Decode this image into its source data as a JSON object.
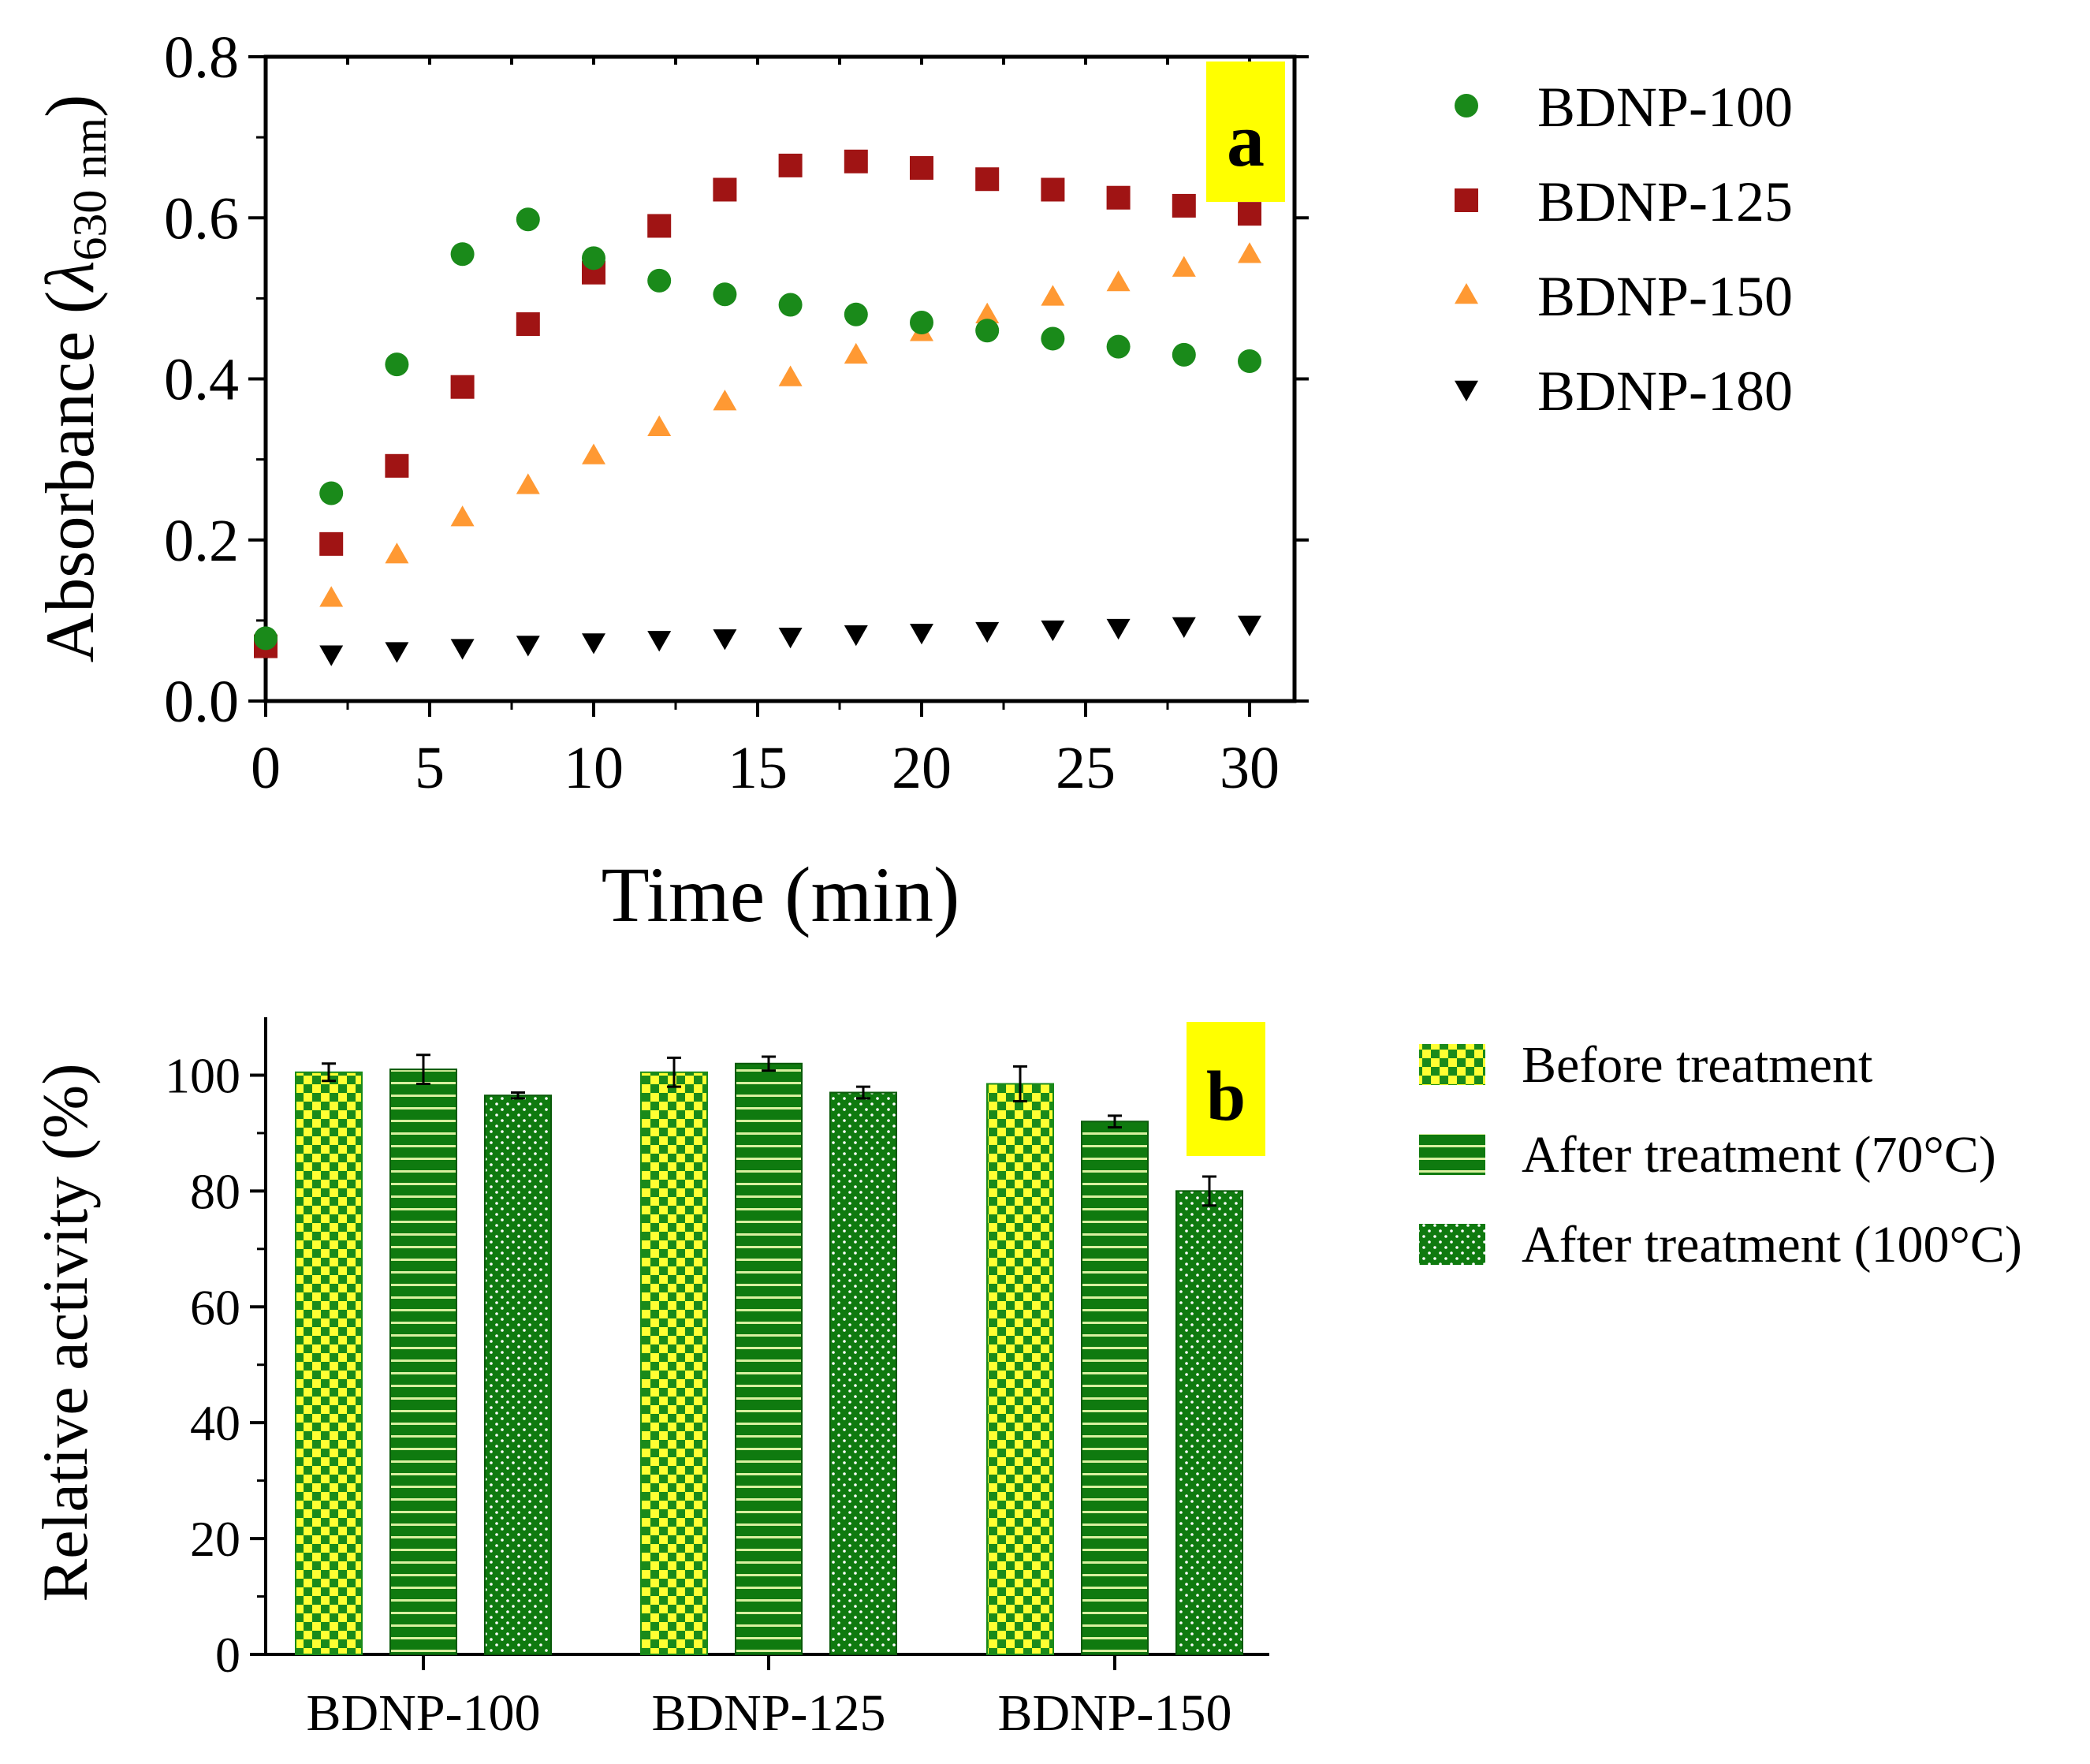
{
  "colors": {
    "green": "#1a8a1a",
    "darkgreen": "#0f7a0f",
    "red": "#a01414",
    "orange": "#ff9933",
    "black": "#000000",
    "yellow": "#ffff00"
  },
  "chart_data": [
    {
      "type": "scatter",
      "panel": "a",
      "xlabel": "Time (min)",
      "ylabel_main": "Absorbance (",
      "ylabel_symbol": "λ",
      "ylabel_sub": "630 nm",
      "ylabel_end": ")",
      "xlim": [
        0,
        30
      ],
      "ylim": [
        0,
        0.8
      ],
      "xticks": [
        0,
        5,
        10,
        15,
        20,
        25,
        30
      ],
      "xtick_labels": [
        "0",
        "5",
        "10",
        "15",
        "20",
        "25",
        "30"
      ],
      "yticks": [
        0,
        0.2,
        0.4,
        0.6,
        0.8
      ],
      "ytick_labels": [
        "0.0",
        "0.2",
        "0.4",
        "0.6",
        "0.8"
      ],
      "legend_position": "right",
      "series": [
        {
          "name": "BDNP-100",
          "marker": "circle",
          "color": "#1a8a1a",
          "x": [
            0,
            2,
            4,
            6,
            8,
            10,
            12,
            14,
            16,
            18,
            20,
            22,
            24,
            26,
            28,
            30
          ],
          "y": [
            0.078,
            0.258,
            0.418,
            0.555,
            0.598,
            0.55,
            0.522,
            0.505,
            0.492,
            0.48,
            0.47,
            0.46,
            0.45,
            0.44,
            0.43,
            0.422
          ]
        },
        {
          "name": "BDNP-125",
          "marker": "square",
          "color": "#a01414",
          "x": [
            0,
            2,
            4,
            6,
            8,
            10,
            12,
            14,
            16,
            18,
            20,
            22,
            24,
            26,
            28,
            30
          ],
          "y": [
            0.068,
            0.195,
            0.292,
            0.39,
            0.468,
            0.532,
            0.59,
            0.635,
            0.665,
            0.67,
            0.662,
            0.648,
            0.635,
            0.625,
            0.615,
            0.605
          ]
        },
        {
          "name": "BDNP-150",
          "marker": "triangle-up",
          "color": "#ff9933",
          "x": [
            0,
            2,
            4,
            6,
            8,
            10,
            12,
            14,
            16,
            18,
            20,
            22,
            24,
            26,
            28,
            30
          ],
          "y": [
            0.072,
            0.128,
            0.182,
            0.228,
            0.268,
            0.305,
            0.34,
            0.372,
            0.402,
            0.43,
            0.458,
            0.48,
            0.502,
            0.52,
            0.538,
            0.555
          ]
        },
        {
          "name": "BDNP-180",
          "marker": "triangle-down",
          "color": "#000000",
          "x": [
            0,
            2,
            4,
            6,
            8,
            10,
            12,
            14,
            16,
            18,
            20,
            22,
            24,
            26,
            28,
            30
          ],
          "y": [
            0.063,
            0.058,
            0.062,
            0.066,
            0.07,
            0.073,
            0.076,
            0.078,
            0.08,
            0.083,
            0.085,
            0.087,
            0.089,
            0.091,
            0.093,
            0.095
          ]
        }
      ]
    },
    {
      "type": "bar",
      "panel": "b",
      "ylabel": "Relative activity (%)",
      "ylim": [
        0,
        110
      ],
      "yticks": [
        0,
        20,
        40,
        60,
        80,
        100
      ],
      "ytick_labels": [
        "0",
        "20",
        "40",
        "60",
        "80",
        "100"
      ],
      "categories": [
        "BDNP-100",
        "BDNP-125",
        "BDNP-150"
      ],
      "legend_position": "right",
      "series": [
        {
          "name": "Before treatment",
          "pattern": "checker",
          "values": [
            100.5,
            100.5,
            98.5
          ],
          "errors": [
            1.5,
            2.5,
            3.0
          ]
        },
        {
          "name": "After treatment (70°C)",
          "pattern": "stripes",
          "values": [
            101.0,
            102.0,
            92.0
          ],
          "errors": [
            2.5,
            1.2,
            1.0
          ]
        },
        {
          "name": "After treatment (100°C)",
          "pattern": "dots",
          "values": [
            96.5,
            97.0,
            80.0
          ],
          "errors": [
            0.5,
            1.0,
            2.5
          ]
        }
      ]
    }
  ]
}
